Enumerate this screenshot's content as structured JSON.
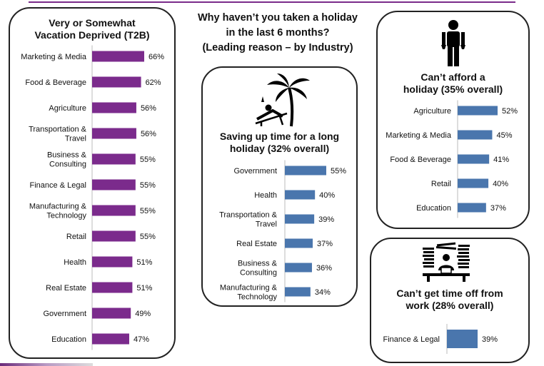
{
  "page": {
    "title_lines": [
      "Why haven’t you taken a holiday",
      "in the last 6 months?",
      "(Leading reason – by Industry)"
    ]
  },
  "colors": {
    "purple": "#7b2b8c",
    "blue": "#4a76ad"
  },
  "icons": {
    "saving": "beach-lounger-palm-icon",
    "afford": "person-empty-pockets-icon",
    "time_off": "worker-paper-stack-icon"
  },
  "panels": {
    "deprived": {
      "title_lines": [
        "Very or Somewhat",
        "Vacation Deprived (T2B)"
      ]
    },
    "saving": {
      "title_lines": [
        "Saving up time for a long",
        "holiday (32% overall)"
      ]
    },
    "afford": {
      "title_lines": [
        "Can’t afford a",
        "holiday (35% overall)"
      ]
    },
    "time_off": {
      "title_lines": [
        "Can’t get time off from",
        "work (28% overall)"
      ]
    }
  },
  "chart_data": [
    {
      "id": "deprived",
      "type": "bar",
      "orientation": "horizontal",
      "categories": [
        "Marketing & Media",
        "Food & Beverage",
        "Agriculture",
        "Transportation & Travel",
        "Business & Consulting",
        "Finance & Legal",
        "Manufacturing & Technology",
        "Retail",
        "Health",
        "Real Estate",
        "Government",
        "Education"
      ],
      "category_lines": [
        [
          "Marketing & Media"
        ],
        [
          "Food & Beverage"
        ],
        [
          "Agriculture"
        ],
        [
          "Transportation &",
          "Travel"
        ],
        [
          "Business &",
          "Consulting"
        ],
        [
          "Finance & Legal"
        ],
        [
          "Manufacturing &",
          "Technology"
        ],
        [
          "Retail"
        ],
        [
          "Health"
        ],
        [
          "Real Estate"
        ],
        [
          "Government"
        ],
        [
          "Education"
        ]
      ],
      "values": [
        66,
        62,
        56,
        56,
        55,
        55,
        55,
        55,
        51,
        51,
        49,
        47
      ],
      "value_labels": [
        "66%",
        "62%",
        "56%",
        "56%",
        "55%",
        "55%",
        "55%",
        "55%",
        "51%",
        "51%",
        "49%",
        "47%"
      ],
      "unit": "%",
      "color": "#7b2b8c"
    },
    {
      "id": "saving",
      "type": "bar",
      "orientation": "horizontal",
      "categories": [
        "Government",
        "Health",
        "Transportation & Travel",
        "Real Estate",
        "Business & Consulting",
        "Manufacturing & Technology"
      ],
      "category_lines": [
        [
          "Government"
        ],
        [
          "Health"
        ],
        [
          "Transportation &",
          "Travel"
        ],
        [
          "Real Estate"
        ],
        [
          "Business &",
          "Consulting"
        ],
        [
          "Manufacturing &",
          "Technology"
        ]
      ],
      "values": [
        55,
        40,
        39,
        37,
        36,
        34
      ],
      "value_labels": [
        "55%",
        "40%",
        "39%",
        "37%",
        "36%",
        "34%"
      ],
      "unit": "%",
      "color": "#4a76ad"
    },
    {
      "id": "afford",
      "type": "bar",
      "orientation": "horizontal",
      "categories": [
        "Agriculture",
        "Marketing & Media",
        "Food & Beverage",
        "Retail",
        "Education"
      ],
      "category_lines": [
        [
          "Agriculture"
        ],
        [
          "Marketing & Media"
        ],
        [
          "Food & Beverage"
        ],
        [
          "Retail"
        ],
        [
          "Education"
        ]
      ],
      "values": [
        52,
        45,
        41,
        40,
        37
      ],
      "value_labels": [
        "52%",
        "45%",
        "41%",
        "40%",
        "37%"
      ],
      "unit": "%",
      "color": "#4a76ad"
    },
    {
      "id": "time_off",
      "type": "bar",
      "orientation": "horizontal",
      "categories": [
        "Finance & Legal"
      ],
      "category_lines": [
        [
          "Finance & Legal"
        ]
      ],
      "values": [
        39
      ],
      "value_labels": [
        "39%"
      ],
      "unit": "%",
      "color": "#4a76ad"
    }
  ]
}
